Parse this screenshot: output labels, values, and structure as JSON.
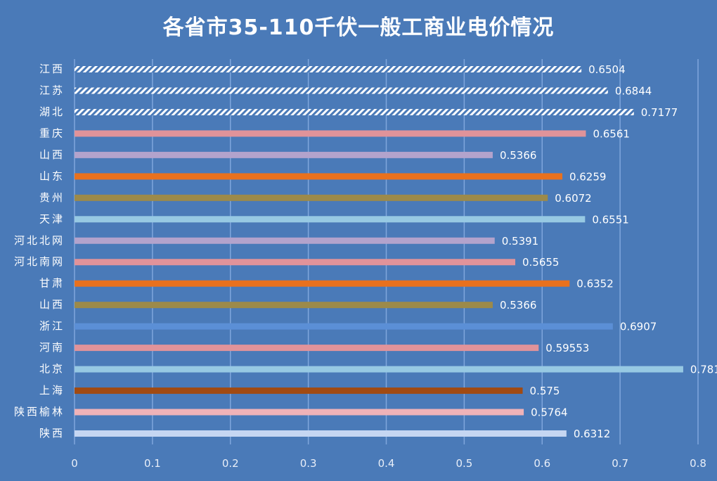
{
  "chart_data": {
    "type": "bar",
    "orientation": "horizontal",
    "title": "各省市35-110千伏一般工商业电价情况",
    "categories": [
      "江西",
      "江苏",
      "湖北",
      "重庆",
      "山西",
      "山东",
      "贵州",
      "天津",
      "河北北网",
      "河北南网",
      "甘肃",
      "山西",
      "浙江",
      "河南",
      "北京",
      "上海",
      "陕西榆林",
      "陕西"
    ],
    "values": [
      0.6504,
      0.6844,
      0.7177,
      0.6561,
      0.5366,
      0.6259,
      0.6072,
      0.6551,
      0.5391,
      0.5655,
      0.6352,
      0.5366,
      0.6907,
      0.59553,
      0.781,
      0.575,
      0.5764,
      0.6312
    ],
    "value_labels": [
      "0.6504",
      "0.6844",
      "0.7177",
      "0.6561",
      "0.5366",
      "0.6259",
      "0.6072",
      "0.6551",
      "0.5391",
      "0.5655",
      "0.6352",
      "0.5366",
      "0.6907",
      "0.59553",
      "0.781",
      "0.575",
      "0.5764",
      "0.6312"
    ],
    "colors": [
      "hatch",
      "hatch",
      "hatch",
      "#e0939a",
      "#b3a3cc",
      "#e8711e",
      "#9c8a4a",
      "#97c9e3",
      "#b3a3cc",
      "#e0939a",
      "#e8711e",
      "#9c8a4a",
      "#5b8fd6",
      "#e0939a",
      "#97c9e3",
      "#a14a12",
      "#f0b3b8",
      "#c5d6f2"
    ],
    "xlim": [
      0,
      0.8
    ],
    "xticks": [
      "0",
      "0.1",
      "0.2",
      "0.3",
      "0.4",
      "0.5",
      "0.6",
      "0.7",
      "0.8"
    ],
    "grid": true,
    "background": "#4a7ab8"
  }
}
